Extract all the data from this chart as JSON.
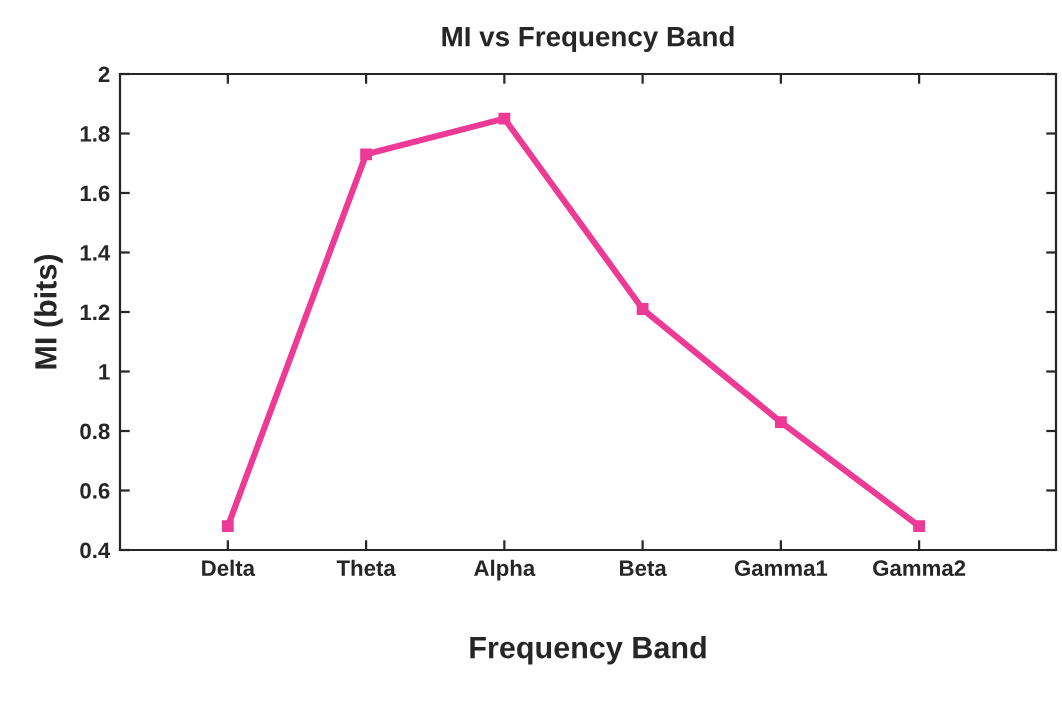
{
  "chart_data": {
    "type": "line",
    "title": "MI vs Frequency Band",
    "xlabel": "Frequency Band",
    "ylabel": "MI (bits)",
    "categories": [
      "Delta",
      "Theta",
      "Alpha",
      "Beta",
      "Gamma1",
      "Gamma2"
    ],
    "series": [
      {
        "color": "#ec3a96",
        "values": [
          0.48,
          1.73,
          1.85,
          1.21,
          0.83,
          0.48
        ]
      }
    ],
    "ylim": [
      0.4,
      2
    ],
    "yticks": [
      0.4,
      0.6,
      0.8,
      1,
      1.2,
      1.4,
      1.6,
      1.8,
      2
    ],
    "marker": "square",
    "line_style": "solid"
  }
}
